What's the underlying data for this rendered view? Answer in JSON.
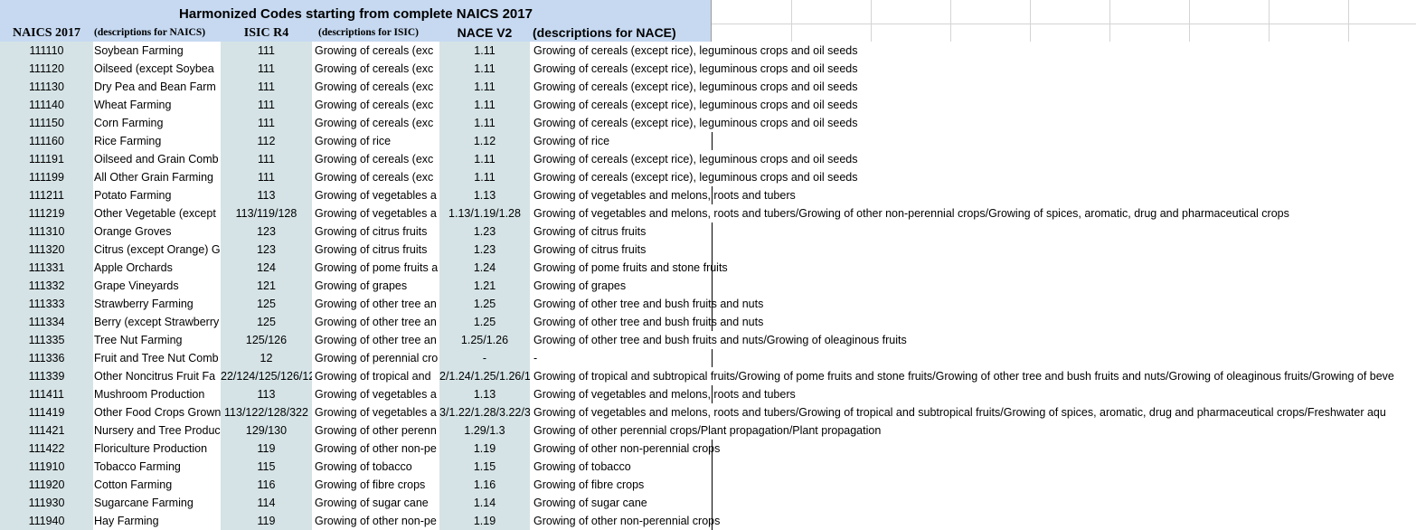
{
  "sheet": {
    "title": "Harmonized Codes starting from complete NAICS 2017",
    "headers": {
      "naics": "NAICS 2017",
      "naics_desc": "(descriptions for NAICS)",
      "isic": "ISIC R4",
      "isic_desc": "(descriptions for ISIC)",
      "nace": "NACE V2",
      "nace_desc": "(descriptions for NACE)"
    },
    "colors": {
      "header_band": "#c6d9f1",
      "code_column_fill": "#d5e3e6"
    },
    "rows": [
      {
        "naics": "111110",
        "naics_desc": "Soybean Farming",
        "isic": "111",
        "isic_desc": "Growing of cereals (exc",
        "nace": "1.11",
        "nace_desc": "Growing of cereals (except rice), leguminous crops and oil seeds"
      },
      {
        "naics": "111120",
        "naics_desc": "Oilseed (except Soybea",
        "isic": "111",
        "isic_desc": "Growing of cereals (exc",
        "nace": "1.11",
        "nace_desc": "Growing of cereals (except rice), leguminous crops and oil seeds"
      },
      {
        "naics": "111130",
        "naics_desc": "Dry Pea and Bean Farm",
        "isic": "111",
        "isic_desc": "Growing of cereals (exc",
        "nace": "1.11",
        "nace_desc": "Growing of cereals (except rice), leguminous crops and oil seeds"
      },
      {
        "naics": "111140",
        "naics_desc": "Wheat Farming",
        "isic": "111",
        "isic_desc": "Growing of cereals (exc",
        "nace": "1.11",
        "nace_desc": "Growing of cereals (except rice), leguminous crops and oil seeds"
      },
      {
        "naics": "111150",
        "naics_desc": "Corn Farming",
        "isic": "111",
        "isic_desc": "Growing of cereals (exc",
        "nace": "1.11",
        "nace_desc": "Growing of cereals (except rice), leguminous crops and oil seeds"
      },
      {
        "naics": "111160",
        "naics_desc": "Rice Farming",
        "isic": "112",
        "isic_desc": "Growing of rice",
        "nace": "1.12",
        "nace_desc": "Growing of rice"
      },
      {
        "naics": "111191",
        "naics_desc": "Oilseed and Grain Comb",
        "isic": "111",
        "isic_desc": "Growing of cereals (exc",
        "nace": "1.11",
        "nace_desc": "Growing of cereals (except rice), leguminous crops and oil seeds"
      },
      {
        "naics": "111199",
        "naics_desc": "All Other Grain Farming",
        "isic": "111",
        "isic_desc": "Growing of cereals (exc",
        "nace": "1.11",
        "nace_desc": "Growing of cereals (except rice), leguminous crops and oil seeds"
      },
      {
        "naics": "111211",
        "naics_desc": "Potato Farming",
        "isic": "113",
        "isic_desc": "Growing of vegetables a",
        "nace": "1.13",
        "nace_desc": "Growing of vegetables and melons, roots and tubers"
      },
      {
        "naics": "111219",
        "naics_desc": "Other Vegetable (except",
        "isic": "113/119/128",
        "isic_desc": "Growing of vegetables a",
        "nace": "1.13/1.19/1.28",
        "nace_desc": "Growing of vegetables and melons, roots and tubers/Growing of other non-perennial crops/Growing of spices, aromatic, drug and pharmaceutical crops"
      },
      {
        "naics": "111310",
        "naics_desc": "Orange Groves",
        "isic": "123",
        "isic_desc": "Growing of citrus fruits",
        "nace": "1.23",
        "nace_desc": "Growing of citrus fruits"
      },
      {
        "naics": "111320",
        "naics_desc": "Citrus (except Orange) G",
        "isic": "123",
        "isic_desc": "Growing of citrus fruits",
        "nace": "1.23",
        "nace_desc": "Growing of citrus fruits"
      },
      {
        "naics": "111331",
        "naics_desc": "Apple Orchards",
        "isic": "124",
        "isic_desc": "Growing of pome fruits a",
        "nace": "1.24",
        "nace_desc": "Growing of pome fruits and stone fruits"
      },
      {
        "naics": "111332",
        "naics_desc": "Grape Vineyards",
        "isic": "121",
        "isic_desc": "Growing of grapes",
        "nace": "1.21",
        "nace_desc": "Growing of grapes"
      },
      {
        "naics": "111333",
        "naics_desc": "Strawberry Farming",
        "isic": "125",
        "isic_desc": "Growing of other tree an",
        "nace": "1.25",
        "nace_desc": "Growing of other tree and bush fruits and nuts"
      },
      {
        "naics": "111334",
        "naics_desc": "Berry (except Strawberry",
        "isic": "125",
        "isic_desc": "Growing of other tree an",
        "nace": "1.25",
        "nace_desc": "Growing of other tree and bush fruits and nuts"
      },
      {
        "naics": "111335",
        "naics_desc": "Tree Nut Farming",
        "isic": "125/126",
        "isic_desc": "Growing of other tree an",
        "nace": "1.25/1.26",
        "nace_desc": "Growing of other tree and bush fruits and nuts/Growing of oleaginous fruits"
      },
      {
        "naics": "111336",
        "naics_desc": "Fruit and Tree Nut Comb",
        "isic": "12",
        "isic_desc": "Growing of perennial cro",
        "nace": "-",
        "nace_desc": "-"
      },
      {
        "naics": "111339",
        "naics_desc": "Other Noncitrus Fruit Fa",
        "isic": "22/124/125/126/12",
        "isic_desc": "Growing of tropical and",
        "nace": "2/1.24/1.25/1.26/1",
        "nace_desc": "Growing of tropical and subtropical fruits/Growing of pome fruits and stone fruits/Growing of other tree and bush fruits and nuts/Growing of oleaginous fruits/Growing of beve"
      },
      {
        "naics": "111411",
        "naics_desc": "Mushroom Production",
        "isic": "113",
        "isic_desc": "Growing of vegetables a",
        "nace": "1.13",
        "nace_desc": "Growing of vegetables and melons, roots and tubers"
      },
      {
        "naics": "111419",
        "naics_desc": "Other Food Crops Grown",
        "isic": "113/122/128/322",
        "isic_desc": "Growing of vegetables a",
        "nace": "3/1.22/1.28/3.22/3",
        "nace_desc": "Growing of vegetables and melons, roots and tubers/Growing of tropical and subtropical fruits/Growing of spices, aromatic, drug and pharmaceutical crops/Freshwater aqu"
      },
      {
        "naics": "111421",
        "naics_desc": "Nursery and Tree Produc",
        "isic": "129/130",
        "isic_desc": "Growing of other perenn",
        "nace": "1.29/1.3",
        "nace_desc": "Growing of other perennial crops/Plant propagation/Plant propagation"
      },
      {
        "naics": "111422",
        "naics_desc": "Floriculture Production",
        "isic": "119",
        "isic_desc": "Growing of other non-pe",
        "nace": "1.19",
        "nace_desc": "Growing of other non-perennial crops"
      },
      {
        "naics": "111910",
        "naics_desc": "Tobacco Farming",
        "isic": "115",
        "isic_desc": "Growing of tobacco",
        "nace": "1.15",
        "nace_desc": "Growing of tobacco"
      },
      {
        "naics": "111920",
        "naics_desc": "Cotton Farming",
        "isic": "116",
        "isic_desc": "Growing of fibre crops",
        "nace": "1.16",
        "nace_desc": "Growing of fibre crops"
      },
      {
        "naics": "111930",
        "naics_desc": "Sugarcane Farming",
        "isic": "114",
        "isic_desc": "Growing of sugar cane",
        "nace": "1.14",
        "nace_desc": "Growing of sugar cane"
      },
      {
        "naics": "111940",
        "naics_desc": "Hay Farming",
        "isic": "119",
        "isic_desc": "Growing of other non-pe",
        "nace": "1.19",
        "nace_desc": "Growing of other non-perennial crops"
      }
    ]
  }
}
